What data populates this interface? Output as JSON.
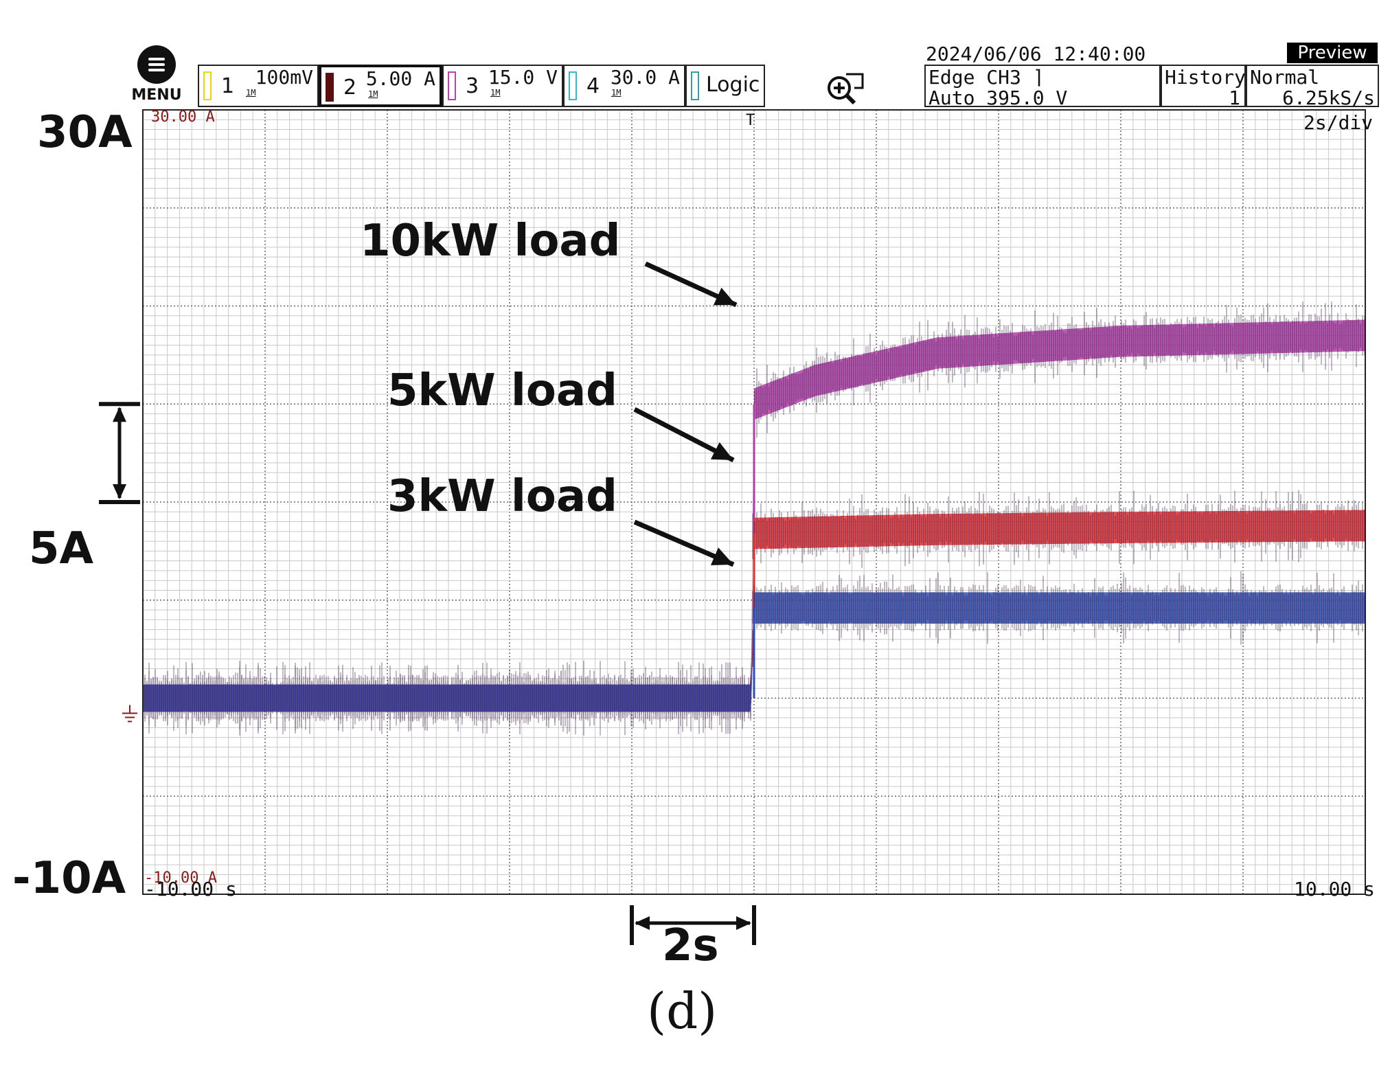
{
  "toolbar": {
    "menu_label": "MENU",
    "channels": [
      {
        "num": "1",
        "impedance": "1M",
        "scale": "100mV",
        "color": "#e8d800"
      },
      {
        "num": "2",
        "impedance": "1M",
        "scale": "5.00 A",
        "color": "#5a1010"
      },
      {
        "num": "3",
        "impedance": "1M",
        "scale": "15.0 V",
        "color": "#c040b0"
      },
      {
        "num": "4",
        "impedance": "1M",
        "scale": "30.0 A",
        "color": "#30b8d0"
      }
    ],
    "logic_label": "Logic",
    "timestamp": "2024/06/06 12:40:00",
    "preview_label": "Preview",
    "trigger_line1": "Edge CH3 ⌉",
    "trigger_line2": "Auto 395.0 V",
    "history_label": "History",
    "history_value": "1",
    "mode_label": "Normal",
    "sample_rate": "6.25kS/s"
  },
  "screen": {
    "top_left_label": "30.00 A",
    "bottom_left_label": "-10.00 A",
    "time_div": "2s/div",
    "time_start": "-10.00 s",
    "time_end": "10.00 s",
    "trigger_marker": "T"
  },
  "annotations": {
    "y_top": "30A",
    "y_bottom": "-10A",
    "scale_bar": "5A",
    "time_bar": "2s",
    "caption": "(d)",
    "labels": [
      "10kW load",
      "5kW load",
      "3kW load"
    ]
  },
  "chart_data": {
    "type": "line",
    "title": "",
    "xlabel": "",
    "ylabel": "",
    "xlim": [
      -10,
      10
    ],
    "ylim": [
      -10,
      30
    ],
    "x_unit": "s",
    "y_unit": "A",
    "grid": true,
    "trigger_time": 0,
    "series": [
      {
        "name": "10kW load",
        "color": "#b040a8",
        "points": [
          [
            -10,
            0
          ],
          [
            -0.05,
            0
          ],
          [
            0,
            15
          ],
          [
            1,
            16.2
          ],
          [
            3,
            17.6
          ],
          [
            6,
            18.2
          ],
          [
            10,
            18.5
          ]
        ]
      },
      {
        "name": "5kW load",
        "color": "#e03030",
        "points": [
          [
            -10,
            0
          ],
          [
            -0.05,
            0
          ],
          [
            0,
            8.4
          ],
          [
            3,
            8.6
          ],
          [
            6,
            8.7
          ],
          [
            10,
            8.8
          ]
        ]
      },
      {
        "name": "3kW load",
        "color": "#3050b0",
        "points": [
          [
            -10,
            0
          ],
          [
            -0.05,
            0
          ],
          [
            0,
            4.6
          ],
          [
            10,
            4.6
          ]
        ]
      }
    ]
  }
}
